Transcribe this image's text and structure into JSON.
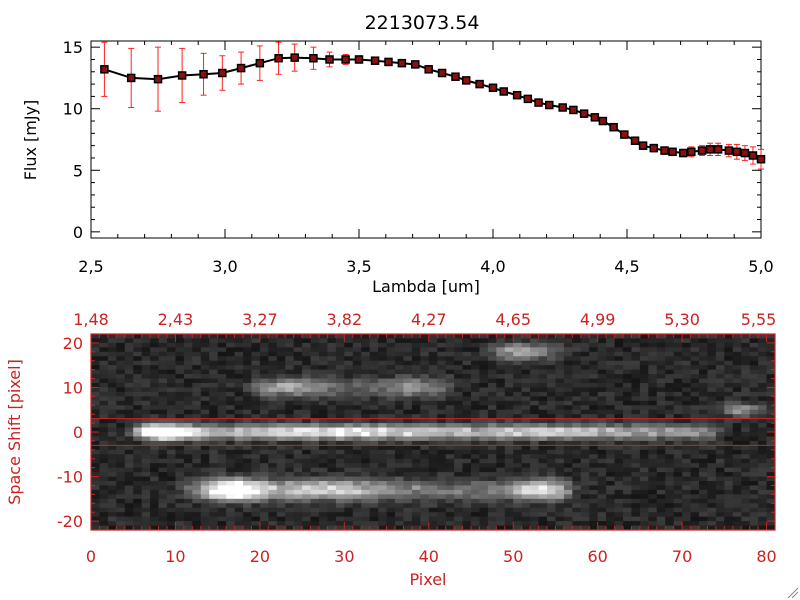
{
  "title": "2213073.54",
  "colors": {
    "red": "#cc2222",
    "black": "#000000",
    "bright_red": "#ff2020"
  },
  "chart_data": [
    {
      "type": "scatter",
      "name": "spectrum",
      "xlabel": "Lambda [um]",
      "ylabel": "Flux [mJy]",
      "xlim": [
        2.5,
        5.0
      ],
      "ylim": [
        -0.5,
        15.5
      ],
      "x_ticks": [
        "2.5",
        "3.0",
        "3.5",
        "4.0",
        "4.5",
        "5.0"
      ],
      "y_ticks": [
        "0",
        "5",
        "10",
        "15"
      ],
      "series": [
        {
          "x": [
            2.55,
            2.65,
            2.75,
            2.84,
            2.92,
            2.99,
            3.06,
            3.13,
            3.2,
            3.26,
            3.33,
            3.39,
            3.45,
            3.5,
            3.56,
            3.61,
            3.66,
            3.71,
            3.76,
            3.81,
            3.86,
            3.9,
            3.95,
            4.0,
            4.04,
            4.09,
            4.13,
            4.17,
            4.21,
            4.26,
            4.3,
            4.34,
            4.38,
            4.41,
            4.45,
            4.49,
            4.53,
            4.56,
            4.6,
            4.64,
            4.67,
            4.71,
            4.74,
            4.78,
            4.81,
            4.84,
            4.88,
            4.91,
            4.94,
            4.97,
            5.0
          ],
          "y": [
            13.2,
            12.5,
            12.4,
            12.7,
            12.8,
            12.9,
            13.3,
            13.7,
            14.1,
            14.15,
            14.1,
            14.0,
            14.0,
            14.0,
            13.9,
            13.8,
            13.7,
            13.6,
            13.2,
            12.9,
            12.6,
            12.3,
            12.0,
            11.7,
            11.4,
            11.1,
            10.8,
            10.5,
            10.3,
            10.1,
            9.9,
            9.6,
            9.3,
            9.0,
            8.5,
            7.9,
            7.4,
            7.0,
            6.8,
            6.6,
            6.5,
            6.4,
            6.5,
            6.6,
            6.7,
            6.7,
            6.6,
            6.5,
            6.4,
            6.2,
            5.9
          ],
          "err": [
            2.2,
            2.4,
            2.6,
            2.2,
            1.7,
            1.4,
            1.3,
            1.4,
            1.3,
            1.1,
            0.9,
            0.6,
            0.4,
            0.3,
            0.2,
            0.2,
            0.2,
            0.2,
            0.2,
            0.2,
            0.2,
            0.2,
            0.2,
            0.2,
            0.2,
            0.2,
            0.2,
            0.2,
            0.2,
            0.2,
            0.2,
            0.2,
            0.2,
            0.2,
            0.2,
            0.2,
            0.3,
            0.3,
            0.3,
            0.3,
            0.3,
            0.3,
            0.4,
            0.4,
            0.5,
            0.5,
            0.5,
            0.6,
            0.6,
            0.7,
            0.8
          ]
        }
      ]
    },
    {
      "type": "heatmap",
      "name": "spectral-image",
      "xlabel": "Pixel",
      "ylabel": "Space Shift [pixel]",
      "xlim": [
        0,
        81
      ],
      "ylim": [
        -22,
        22
      ],
      "x_ticks": [
        "0",
        "10",
        "20",
        "30",
        "40",
        "50",
        "60",
        "70",
        "80"
      ],
      "y_ticks": [
        "-20",
        "-10",
        "0",
        "10",
        "20"
      ],
      "top_ticks": [
        "1.48",
        "2.43",
        "3.27",
        "3.82",
        "4.27",
        "4.65",
        "4.99",
        "5.30",
        "5.55"
      ],
      "extraction_window": [
        -3,
        3
      ],
      "traces": [
        {
          "y": 0,
          "x_start": 6,
          "x_end": 73,
          "width": 1.6,
          "peaks": [
            {
              "x": 9,
              "amp": 1.0,
              "w": 3
            },
            {
              "x": 30,
              "amp": 0.35,
              "w": 14
            },
            {
              "x": 55,
              "amp": 0.2,
              "w": 8
            }
          ],
          "base": 0.45
        },
        {
          "y": -13,
          "x_start": 12,
          "x_end": 56,
          "width": 2.2,
          "peaks": [
            {
              "x": 17,
              "amp": 1.0,
              "w": 3
            },
            {
              "x": 27,
              "amp": 0.4,
              "w": 8
            },
            {
              "x": 53,
              "amp": 0.5,
              "w": 3
            }
          ],
          "base": 0.3
        },
        {
          "y": 10,
          "x_start": 20,
          "x_end": 42,
          "width": 2.0,
          "peaks": [
            {
              "x": 24,
              "amp": 0.35,
              "w": 5
            },
            {
              "x": 38,
              "amp": 0.3,
              "w": 4
            }
          ],
          "base": 0.15
        },
        {
          "y": 18,
          "x_start": 48,
          "x_end": 56,
          "width": 1.8,
          "peaks": [
            {
              "x": 51,
              "amp": 0.45,
              "w": 3
            }
          ],
          "base": 0.1
        },
        {
          "y": 5,
          "x_start": 74,
          "x_end": 80,
          "width": 1.5,
          "peaks": [
            {
              "x": 77,
              "amp": 0.3,
              "w": 2
            }
          ],
          "base": 0.1
        }
      ]
    }
  ]
}
